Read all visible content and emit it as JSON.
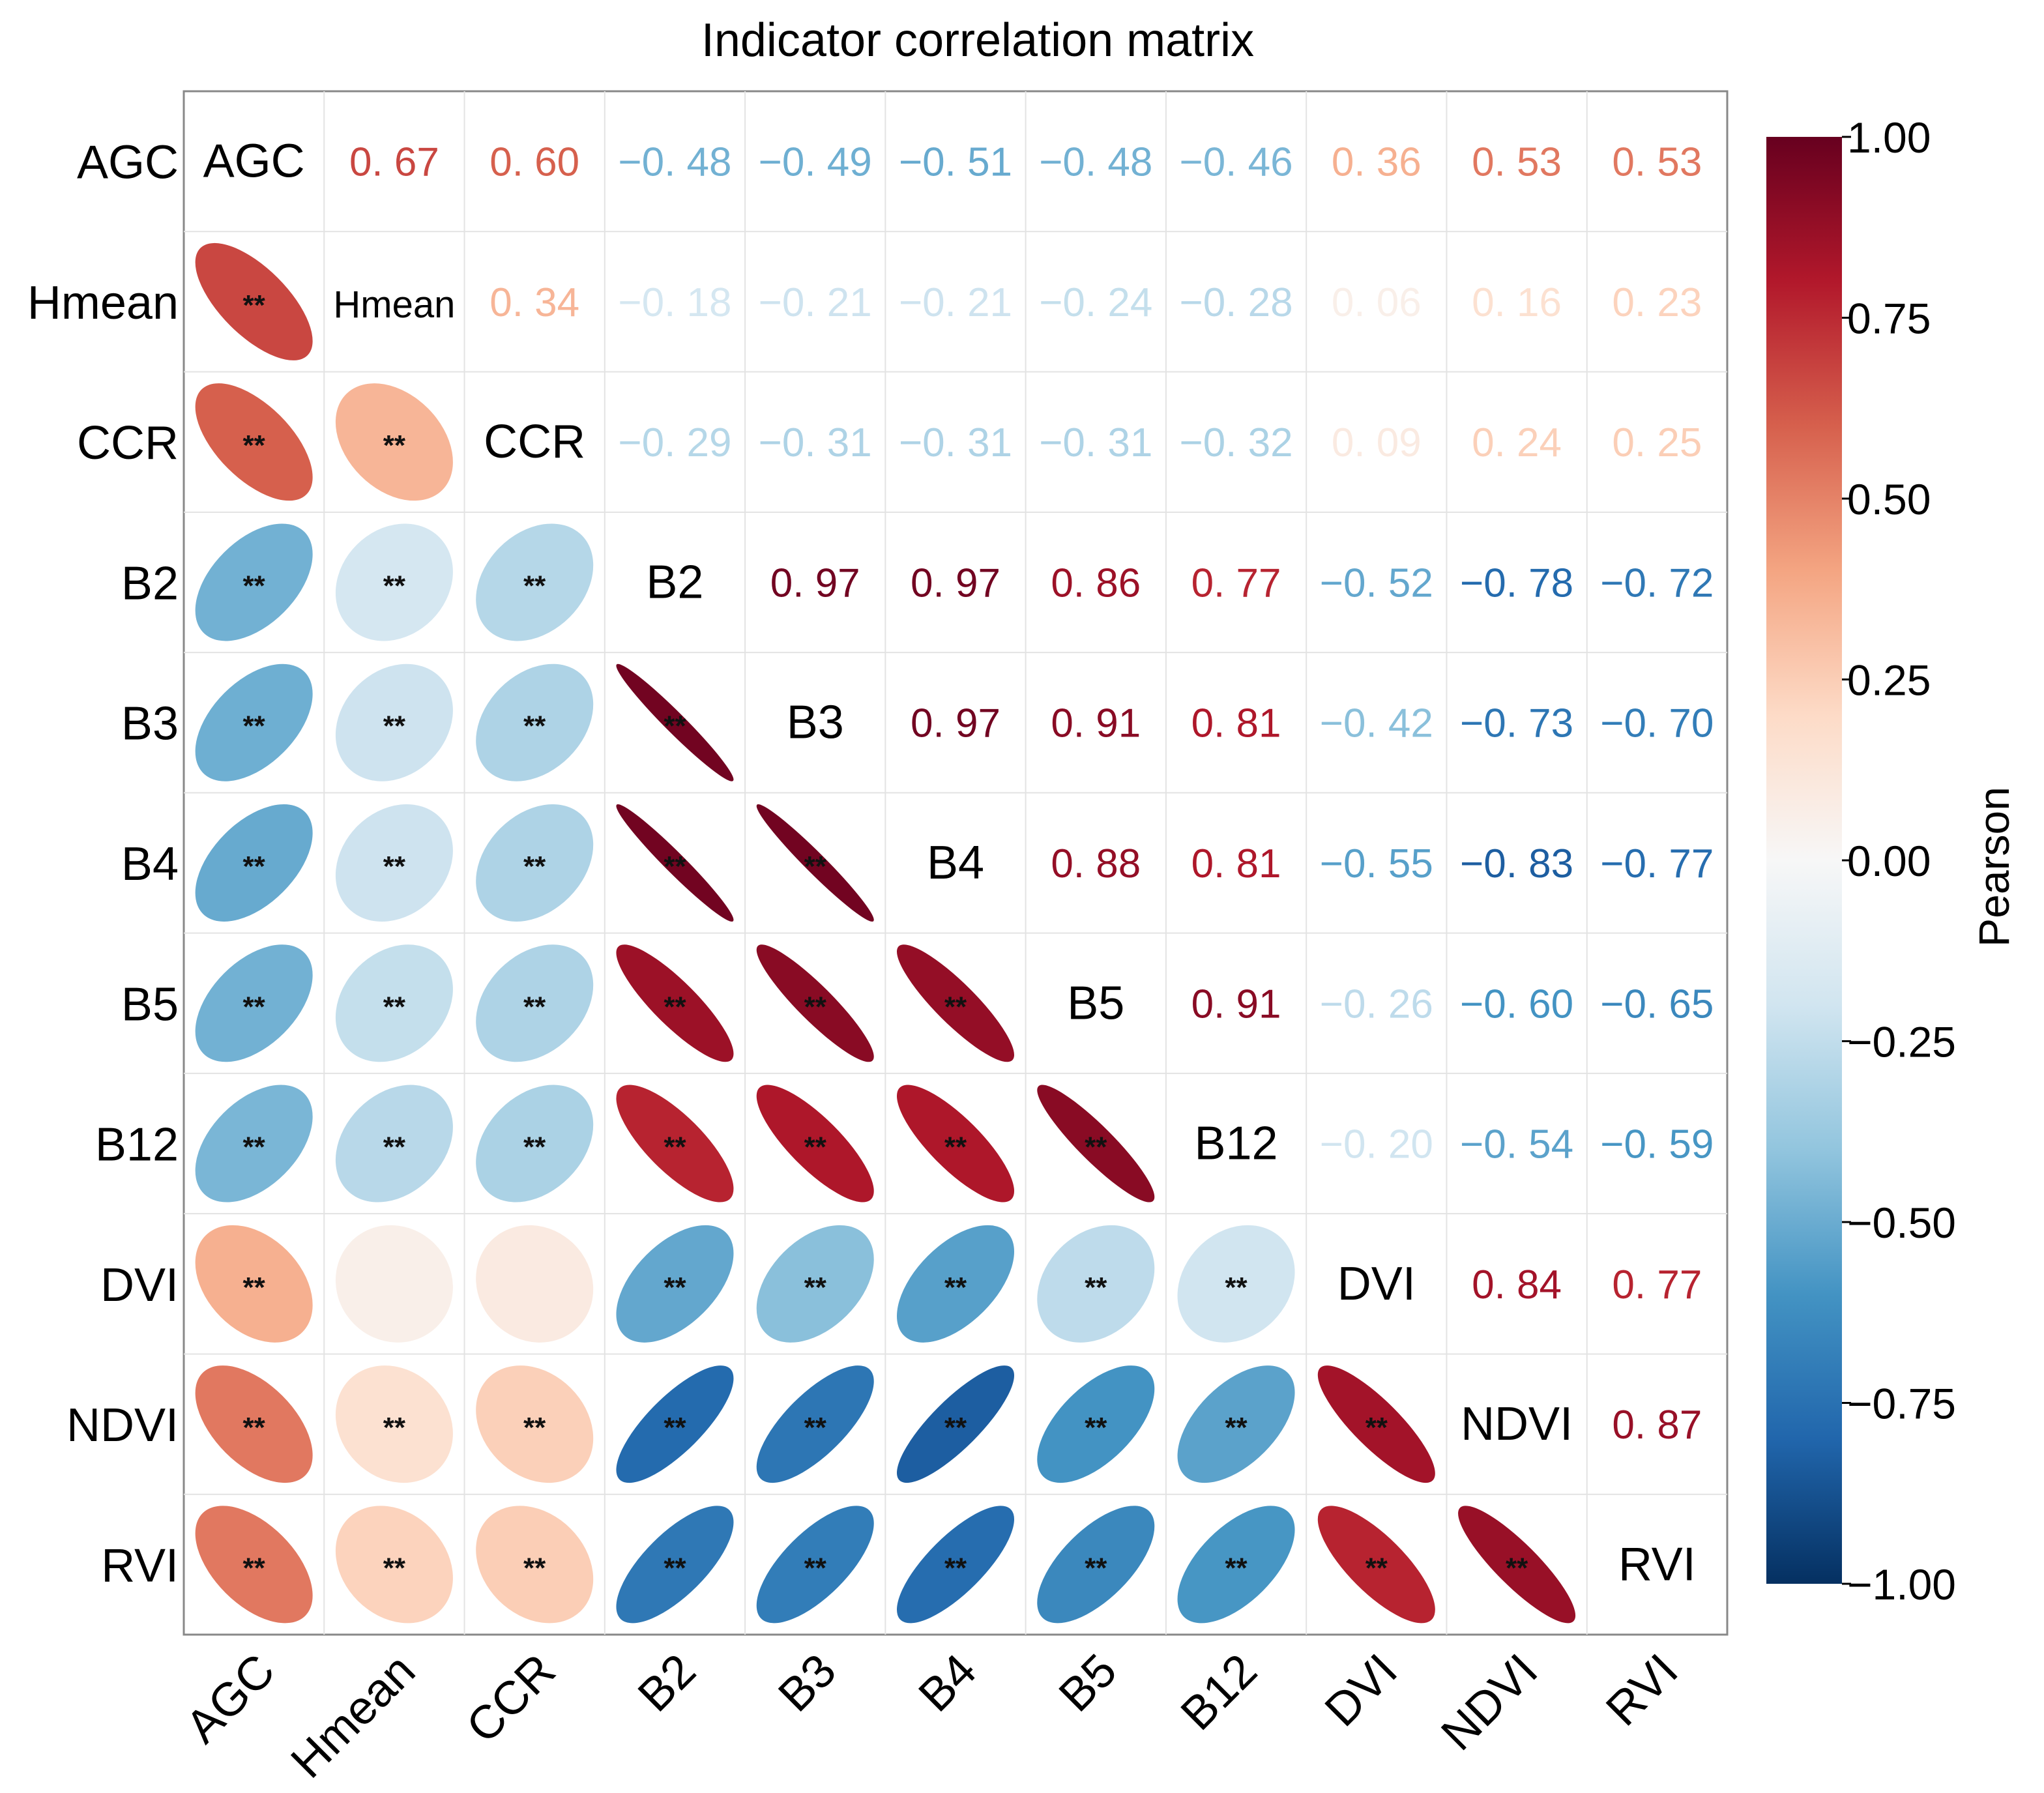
{
  "chart_data": {
    "type": "heatmap",
    "title": "Indicator correlation matrix",
    "variables": [
      "AGC",
      "Hmean",
      "CCR",
      "B2",
      "B3",
      "B4",
      "B5",
      "B12",
      "DVI",
      "NDVI",
      "RVI"
    ],
    "correlation_matrix": [
      [
        1.0,
        0.67,
        0.6,
        -0.48,
        -0.49,
        -0.51,
        -0.48,
        -0.46,
        0.36,
        0.53,
        0.53
      ],
      [
        0.67,
        1.0,
        0.34,
        -0.18,
        -0.21,
        -0.21,
        -0.24,
        -0.28,
        0.06,
        0.16,
        0.23
      ],
      [
        0.6,
        0.34,
        1.0,
        -0.29,
        -0.31,
        -0.31,
        -0.31,
        -0.32,
        0.09,
        0.24,
        0.25
      ],
      [
        -0.48,
        -0.18,
        -0.29,
        1.0,
        0.97,
        0.97,
        0.86,
        0.77,
        -0.52,
        -0.78,
        -0.72
      ],
      [
        -0.49,
        -0.21,
        -0.31,
        0.97,
        1.0,
        0.97,
        0.91,
        0.81,
        -0.42,
        -0.73,
        -0.7
      ],
      [
        -0.51,
        -0.21,
        -0.31,
        0.97,
        0.97,
        1.0,
        0.88,
        0.81,
        -0.55,
        -0.83,
        -0.77
      ],
      [
        -0.48,
        -0.24,
        -0.31,
        0.86,
        0.91,
        0.88,
        1.0,
        0.91,
        -0.26,
        -0.6,
        -0.65
      ],
      [
        -0.46,
        -0.28,
        -0.32,
        0.77,
        0.81,
        0.81,
        0.91,
        1.0,
        -0.2,
        -0.54,
        -0.59
      ],
      [
        0.36,
        0.06,
        0.09,
        -0.52,
        -0.42,
        -0.55,
        -0.26,
        -0.2,
        1.0,
        0.84,
        0.77
      ],
      [
        0.53,
        0.16,
        0.24,
        -0.78,
        -0.73,
        -0.83,
        -0.6,
        -0.54,
        0.84,
        1.0,
        0.87
      ],
      [
        0.53,
        0.23,
        0.25,
        -0.72,
        -0.7,
        -0.77,
        -0.65,
        -0.59,
        0.77,
        0.87,
        1.0
      ]
    ],
    "number_strings": [
      [
        "",
        "0. 67",
        "0. 60",
        "−0. 48",
        "−0. 49",
        "−0. 51",
        "−0. 48",
        "−0. 46",
        "0. 36",
        "0. 53",
        "0. 53"
      ],
      [
        "",
        "",
        "0. 34",
        "−0. 18",
        "−0. 21",
        "−0. 21",
        "−0. 24",
        "−0. 28",
        "0. 06",
        "0. 16",
        "0. 23"
      ],
      [
        "",
        "",
        "",
        "−0. 29",
        "−0. 31",
        "−0. 31",
        "−0. 31",
        "−0. 32",
        "0. 09",
        "0. 24",
        "0. 25"
      ],
      [
        "",
        "",
        "",
        "",
        "0. 97",
        "0. 97",
        "0. 86",
        "0. 77",
        "−0. 52",
        "−0. 78",
        "−0. 72"
      ],
      [
        "",
        "",
        "",
        "",
        "",
        "0. 97",
        "0. 91",
        "0. 81",
        "−0. 42",
        "−0. 73",
        "−0. 70"
      ],
      [
        "",
        "",
        "",
        "",
        "",
        "",
        "0. 88",
        "0. 81",
        "−0. 55",
        "−0. 83",
        "−0. 77"
      ],
      [
        "",
        "",
        "",
        "",
        "",
        "",
        "",
        "0. 91",
        "−0. 26",
        "−0. 60",
        "−0. 65"
      ],
      [
        "",
        "",
        "",
        "",
        "",
        "",
        "",
        "",
        "−0. 20",
        "−0. 54",
        "−0. 59"
      ],
      [
        "",
        "",
        "",
        "",
        "",
        "",
        "",
        "",
        "",
        "0. 84",
        "0. 77"
      ],
      [
        "",
        "",
        "",
        "",
        "",
        "",
        "",
        "",
        "",
        "",
        "0. 87"
      ],
      [
        "",
        "",
        "",
        "",
        "",
        "",
        "",
        "",
        "",
        "",
        ""
      ]
    ],
    "significance_lower": [
      [
        "",
        "",
        "",
        "",
        "",
        "",
        "",
        "",
        "",
        "",
        ""
      ],
      [
        "**",
        "",
        "",
        "",
        "",
        "",
        "",
        "",
        "",
        "",
        ""
      ],
      [
        "**",
        "**",
        "",
        "",
        "",
        "",
        "",
        "",
        "",
        "",
        ""
      ],
      [
        "**",
        "**",
        "**",
        "",
        "",
        "",
        "",
        "",
        "",
        "",
        ""
      ],
      [
        "**",
        "**",
        "**",
        "**",
        "",
        "",
        "",
        "",
        "",
        "",
        ""
      ],
      [
        "**",
        "**",
        "**",
        "**",
        "**",
        "",
        "",
        "",
        "",
        "",
        ""
      ],
      [
        "**",
        "**",
        "**",
        "**",
        "**",
        "**",
        "",
        "",
        "",
        "",
        ""
      ],
      [
        "**",
        "**",
        "**",
        "**",
        "**",
        "**",
        "**",
        "",
        "",
        "",
        ""
      ],
      [
        "**",
        "",
        "",
        "**",
        "**",
        "**",
        "**",
        "**",
        "",
        "",
        ""
      ],
      [
        "**",
        "**",
        "**",
        "**",
        "**",
        "**",
        "**",
        "**",
        "**",
        "",
        ""
      ],
      [
        "**",
        "**",
        "**",
        "**",
        "**",
        "**",
        "**",
        "**",
        "**",
        "**",
        ""
      ]
    ],
    "colorbar": {
      "label": "Pearson",
      "range": [
        -1.0,
        1.0
      ],
      "ticks": [
        "1.00",
        "0.75",
        "0.50",
        "0.25",
        "0.00",
        "−0.25",
        "−0.50",
        "−0.75",
        "−1.00"
      ],
      "tick_values": [
        1.0,
        0.75,
        0.5,
        0.25,
        0.0,
        -0.25,
        -0.5,
        -0.75,
        -1.0
      ],
      "colormap": "RdBu_r"
    },
    "colormap_stops": [
      {
        "v": -1.0,
        "c": "#053061"
      },
      {
        "v": -0.8,
        "c": "#2166ac"
      },
      {
        "v": -0.6,
        "c": "#4393c3"
      },
      {
        "v": -0.4,
        "c": "#92c5de"
      },
      {
        "v": -0.2,
        "c": "#d1e5f0"
      },
      {
        "v": 0.0,
        "c": "#f7f7f7"
      },
      {
        "v": 0.2,
        "c": "#fddbc7"
      },
      {
        "v": 0.4,
        "c": "#f4a582"
      },
      {
        "v": 0.6,
        "c": "#d6604d"
      },
      {
        "v": 0.8,
        "c": "#b2182b"
      },
      {
        "v": 1.0,
        "c": "#67001f"
      }
    ],
    "lower_triangle": "ellipse",
    "upper_triangle": "number",
    "diagonal": "variable name"
  }
}
